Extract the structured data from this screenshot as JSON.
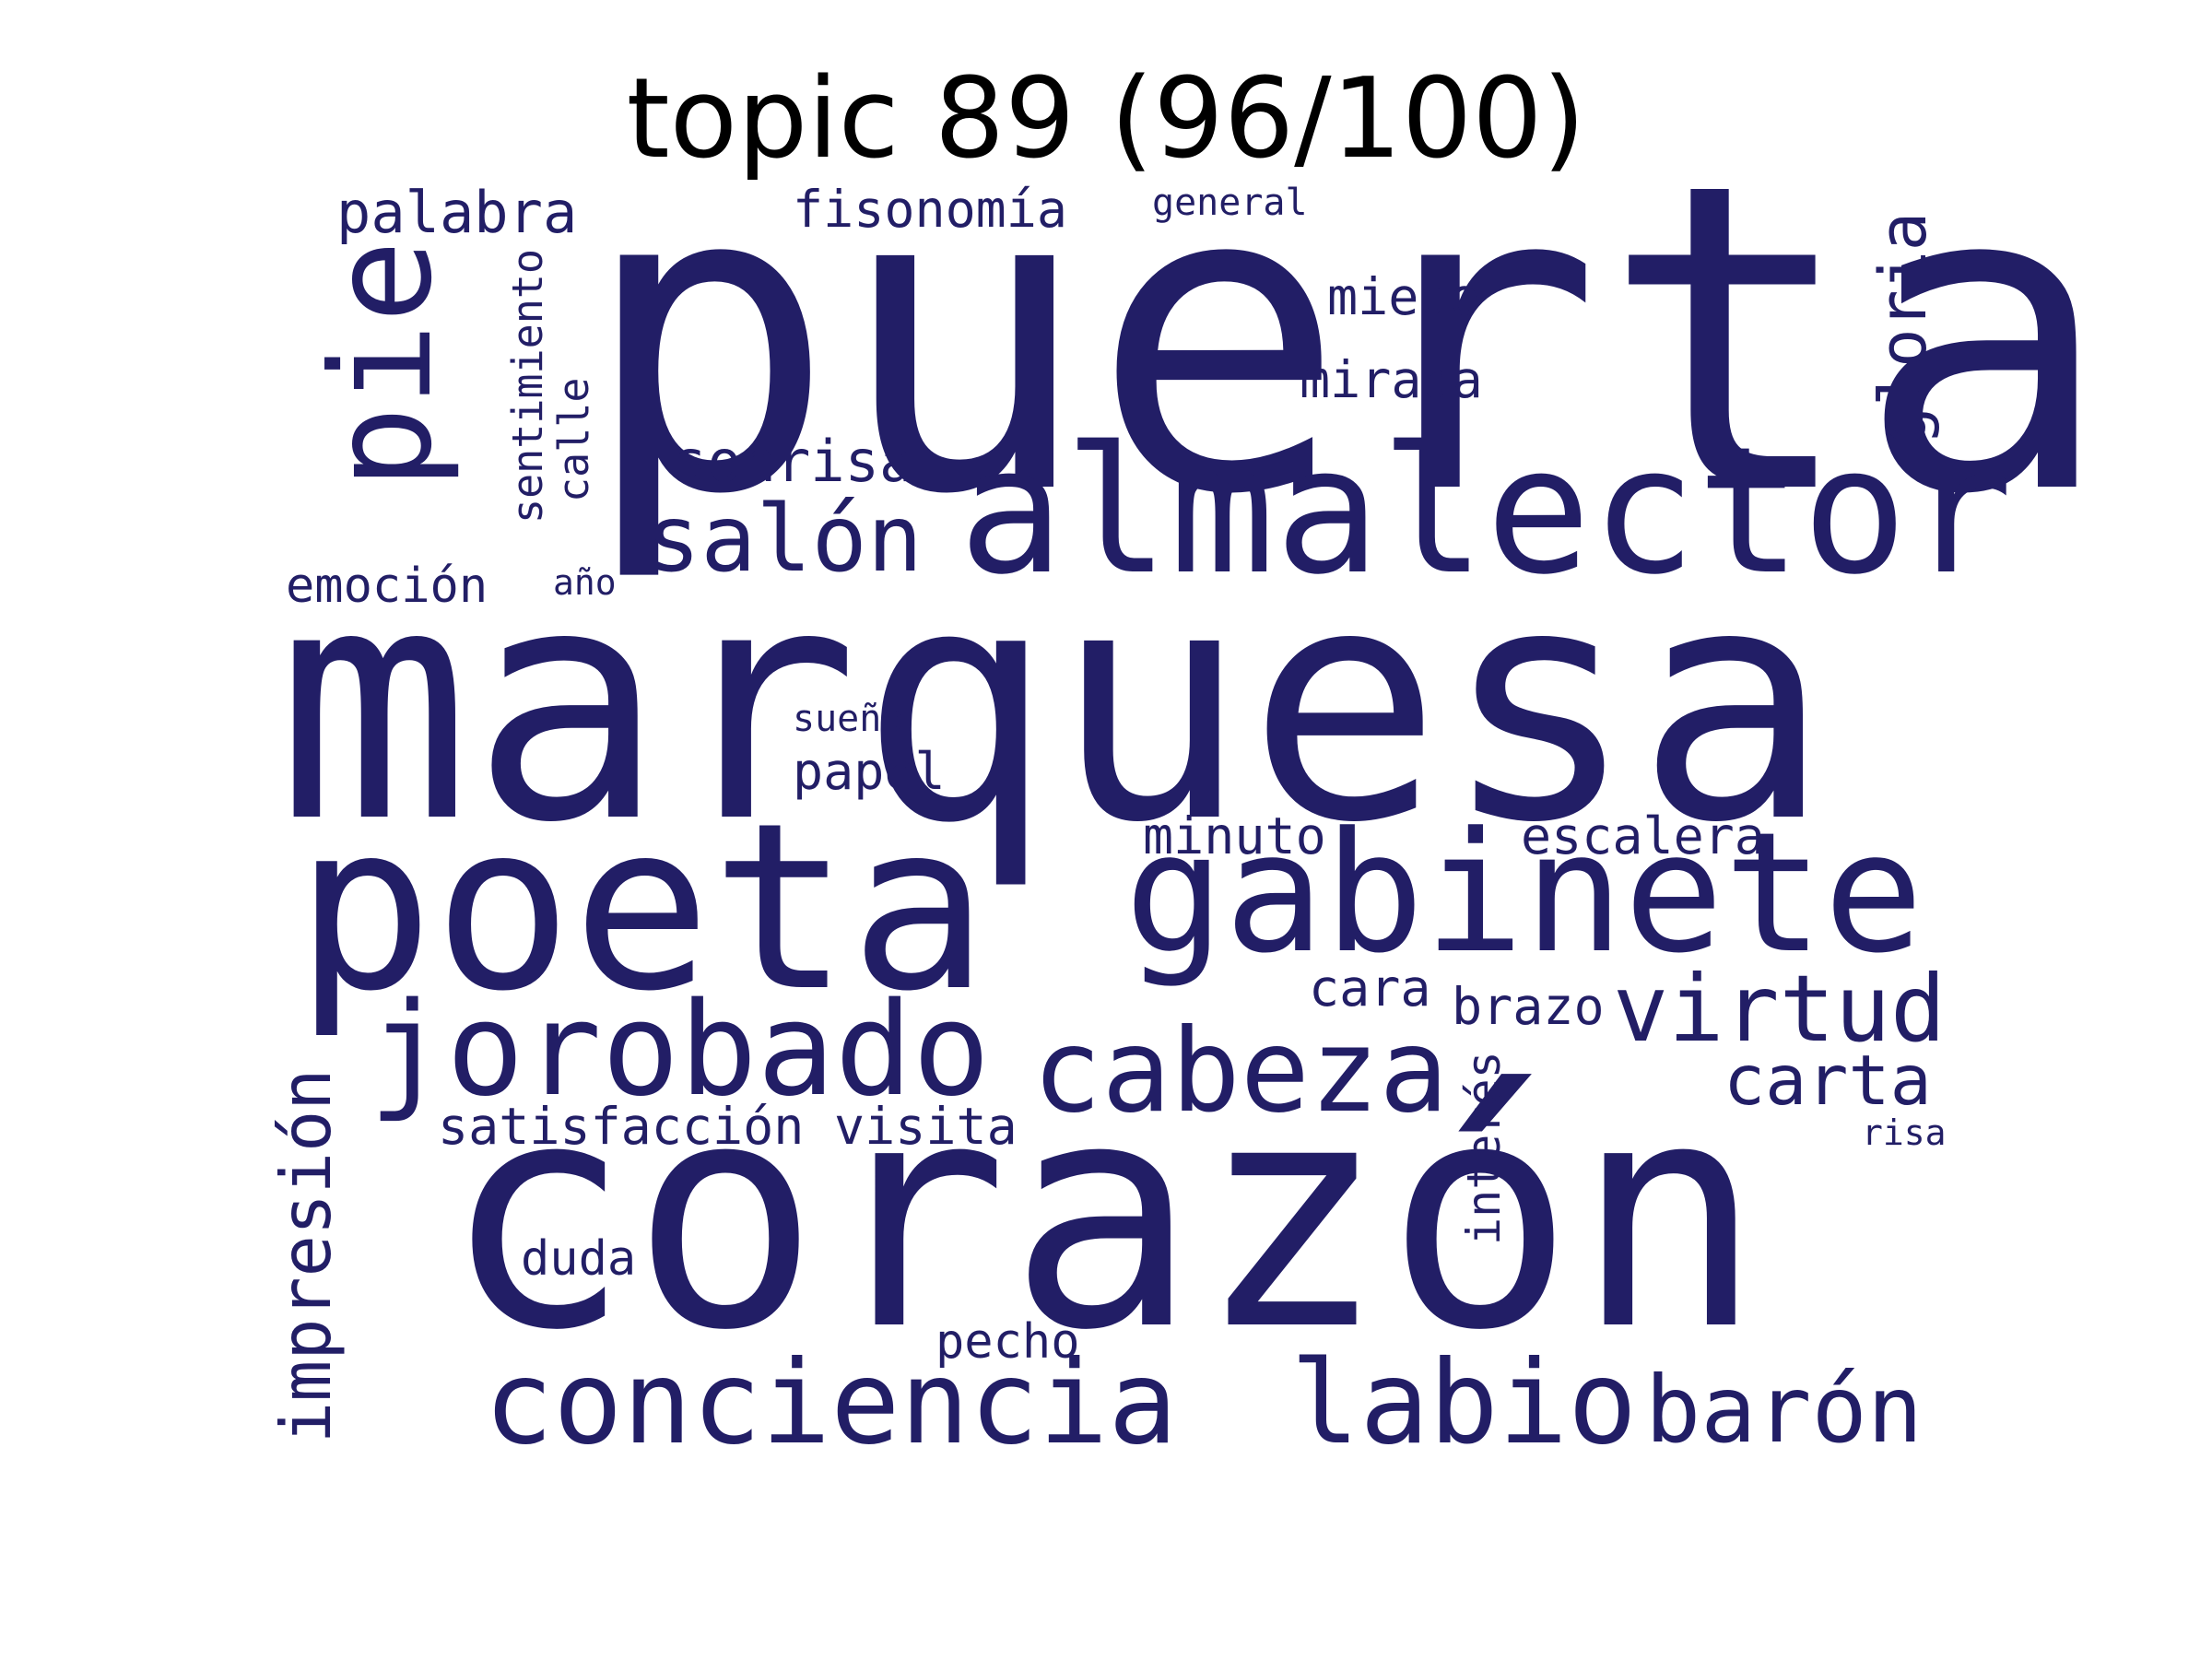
{
  "title": "topic 89 (96/100)",
  "word_color": "#221e66",
  "words": [
    {
      "text": "puerta"
    },
    {
      "text": "marquesa"
    },
    {
      "text": "corazón"
    },
    {
      "text": "poeta"
    },
    {
      "text": "almalector"
    },
    {
      "text": "gabinete"
    },
    {
      "text": "pie"
    },
    {
      "text": "jorobado"
    },
    {
      "text": "cabeza"
    },
    {
      "text": "conciencia"
    },
    {
      "text": "labio"
    },
    {
      "text": "barón"
    },
    {
      "text": "salón"
    },
    {
      "text": "virtud"
    },
    {
      "text": "carta"
    },
    {
      "text": "impresión"
    },
    {
      "text": "gloria"
    },
    {
      "text": "palabra"
    },
    {
      "text": "sonrisa"
    },
    {
      "text": "fisonomía"
    },
    {
      "text": "miedo"
    },
    {
      "text": "mirada"
    },
    {
      "text": "sentimiento"
    },
    {
      "text": "calle"
    },
    {
      "text": "emoción"
    },
    {
      "text": "año"
    },
    {
      "text": "general"
    },
    {
      "text": "sueño"
    },
    {
      "text": "papel"
    },
    {
      "text": "minuto"
    },
    {
      "text": "escalera"
    },
    {
      "text": "cara"
    },
    {
      "text": "brazo"
    },
    {
      "text": "interés"
    },
    {
      "text": "satisfacción"
    },
    {
      "text": "visita"
    },
    {
      "text": "risa"
    },
    {
      "text": "duda"
    },
    {
      "text": "pecho"
    }
  ]
}
